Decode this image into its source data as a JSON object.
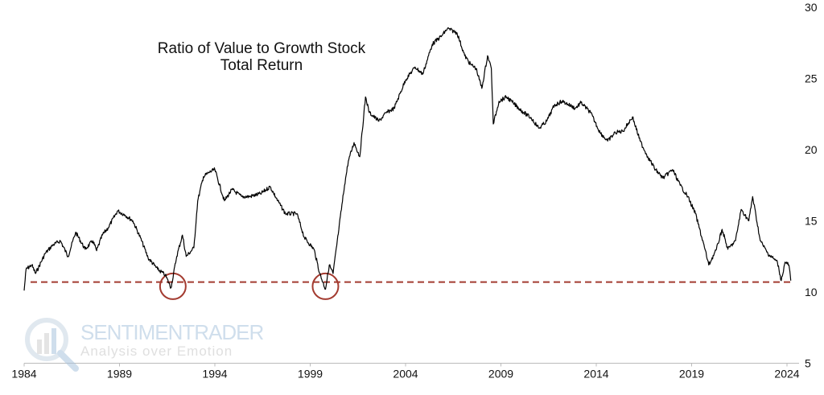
{
  "chart_data": {
    "type": "line",
    "title": "Ratio of Value to Growth Stock",
    "subtitle": "Total Return",
    "xlabel": "",
    "ylabel": "",
    "xlim": [
      1984,
      2025
    ],
    "ylim": [
      5,
      30
    ],
    "x_ticks": [
      "1984",
      "1989",
      "1994",
      "1999",
      "2004",
      "2009",
      "2014",
      "2019",
      "2024"
    ],
    "y_ticks": [
      "5",
      "10",
      "15",
      "20",
      "25",
      "30"
    ],
    "y_axis_side": "right",
    "grid": false,
    "line_color": "#000000",
    "reference_line": {
      "value": 10.7,
      "style": "dashed",
      "color": "#a33b30"
    },
    "highlight_circles": [
      {
        "x": 1991.8,
        "y": 10.4,
        "color": "#a33b30"
      },
      {
        "x": 1999.8,
        "y": 10.4,
        "color": "#a33b30"
      }
    ],
    "series": [
      {
        "x": [
          1984.0,
          1984.1,
          1984.4,
          1984.6,
          1985.1,
          1985.5,
          1985.9,
          1986.3,
          1986.7,
          1987.2,
          1987.6,
          1987.8,
          1988.1,
          1988.4,
          1988.9,
          1989.3,
          1989.7,
          1990.1,
          1990.5,
          1991.0,
          1991.4,
          1991.7,
          1992.0,
          1992.3,
          1992.5,
          1992.9,
          1993.1,
          1993.4,
          1993.7,
          1994.0,
          1994.5,
          1994.9,
          1995.4,
          1995.8,
          1996.4,
          1996.9,
          1997.3,
          1997.7,
          1998.3,
          1998.7,
          1999.2,
          1999.5,
          1999.8,
          2000.0,
          2000.2,
          2000.5,
          2000.8,
          2001.0,
          2001.3,
          2001.6,
          2001.9,
          2002.1,
          2002.6,
          2003.0,
          2003.4,
          2004.0,
          2004.5,
          2004.9,
          2005.4,
          2005.9,
          2006.2,
          2006.7,
          2007.1,
          2007.4,
          2007.7,
          2008.0,
          2008.3,
          2008.5,
          2008.6,
          2008.9,
          2009.3,
          2009.7,
          2010.2,
          2010.6,
          2011.0,
          2011.4,
          2011.8,
          2012.2,
          2012.5,
          2012.9,
          2013.2,
          2013.7,
          2014.2,
          2014.6,
          2015.0,
          2015.4,
          2015.9,
          2016.3,
          2016.7,
          2017.1,
          2017.5,
          2018.0,
          2018.4,
          2018.8,
          2019.2,
          2019.7,
          2019.9,
          2020.3,
          2020.6,
          2020.9,
          2021.3,
          2021.6,
          2022.0,
          2022.2,
          2022.6,
          2023.0,
          2023.5,
          2023.7,
          2023.9,
          2024.1,
          2024.2
        ],
        "values": [
          10.1,
          11.6,
          11.9,
          11.3,
          12.7,
          13.3,
          13.6,
          12.5,
          14.2,
          13.0,
          13.6,
          12.9,
          14.0,
          14.5,
          15.7,
          15.4,
          15.0,
          13.8,
          12.4,
          11.6,
          11.2,
          10.3,
          12.5,
          14.0,
          12.5,
          13.1,
          16.4,
          18.1,
          18.4,
          18.6,
          16.4,
          17.2,
          16.7,
          16.7,
          16.9,
          17.4,
          16.4,
          15.5,
          15.5,
          13.8,
          13.0,
          11.3,
          10.2,
          11.9,
          11.3,
          14.4,
          17.5,
          19.2,
          20.5,
          19.5,
          23.7,
          22.6,
          22.0,
          22.6,
          22.9,
          24.9,
          25.8,
          25.3,
          27.4,
          28.0,
          28.5,
          28.2,
          26.6,
          26.0,
          25.7,
          24.3,
          26.6,
          25.7,
          21.8,
          23.4,
          23.7,
          23.2,
          22.6,
          22.2,
          21.5,
          22.0,
          23.1,
          23.4,
          23.2,
          22.9,
          23.3,
          22.6,
          21.2,
          20.6,
          21.2,
          21.3,
          22.3,
          20.6,
          19.5,
          18.6,
          18.0,
          18.6,
          17.5,
          16.7,
          15.5,
          13.0,
          11.9,
          13.0,
          14.4,
          13.0,
          13.6,
          15.8,
          15.0,
          16.7,
          13.6,
          12.7,
          12.1,
          10.8,
          12.1,
          11.9,
          10.8
        ]
      }
    ]
  },
  "watermark": {
    "name": "SENTIMENTRADER",
    "tagline": "Analysis over Emotion"
  }
}
